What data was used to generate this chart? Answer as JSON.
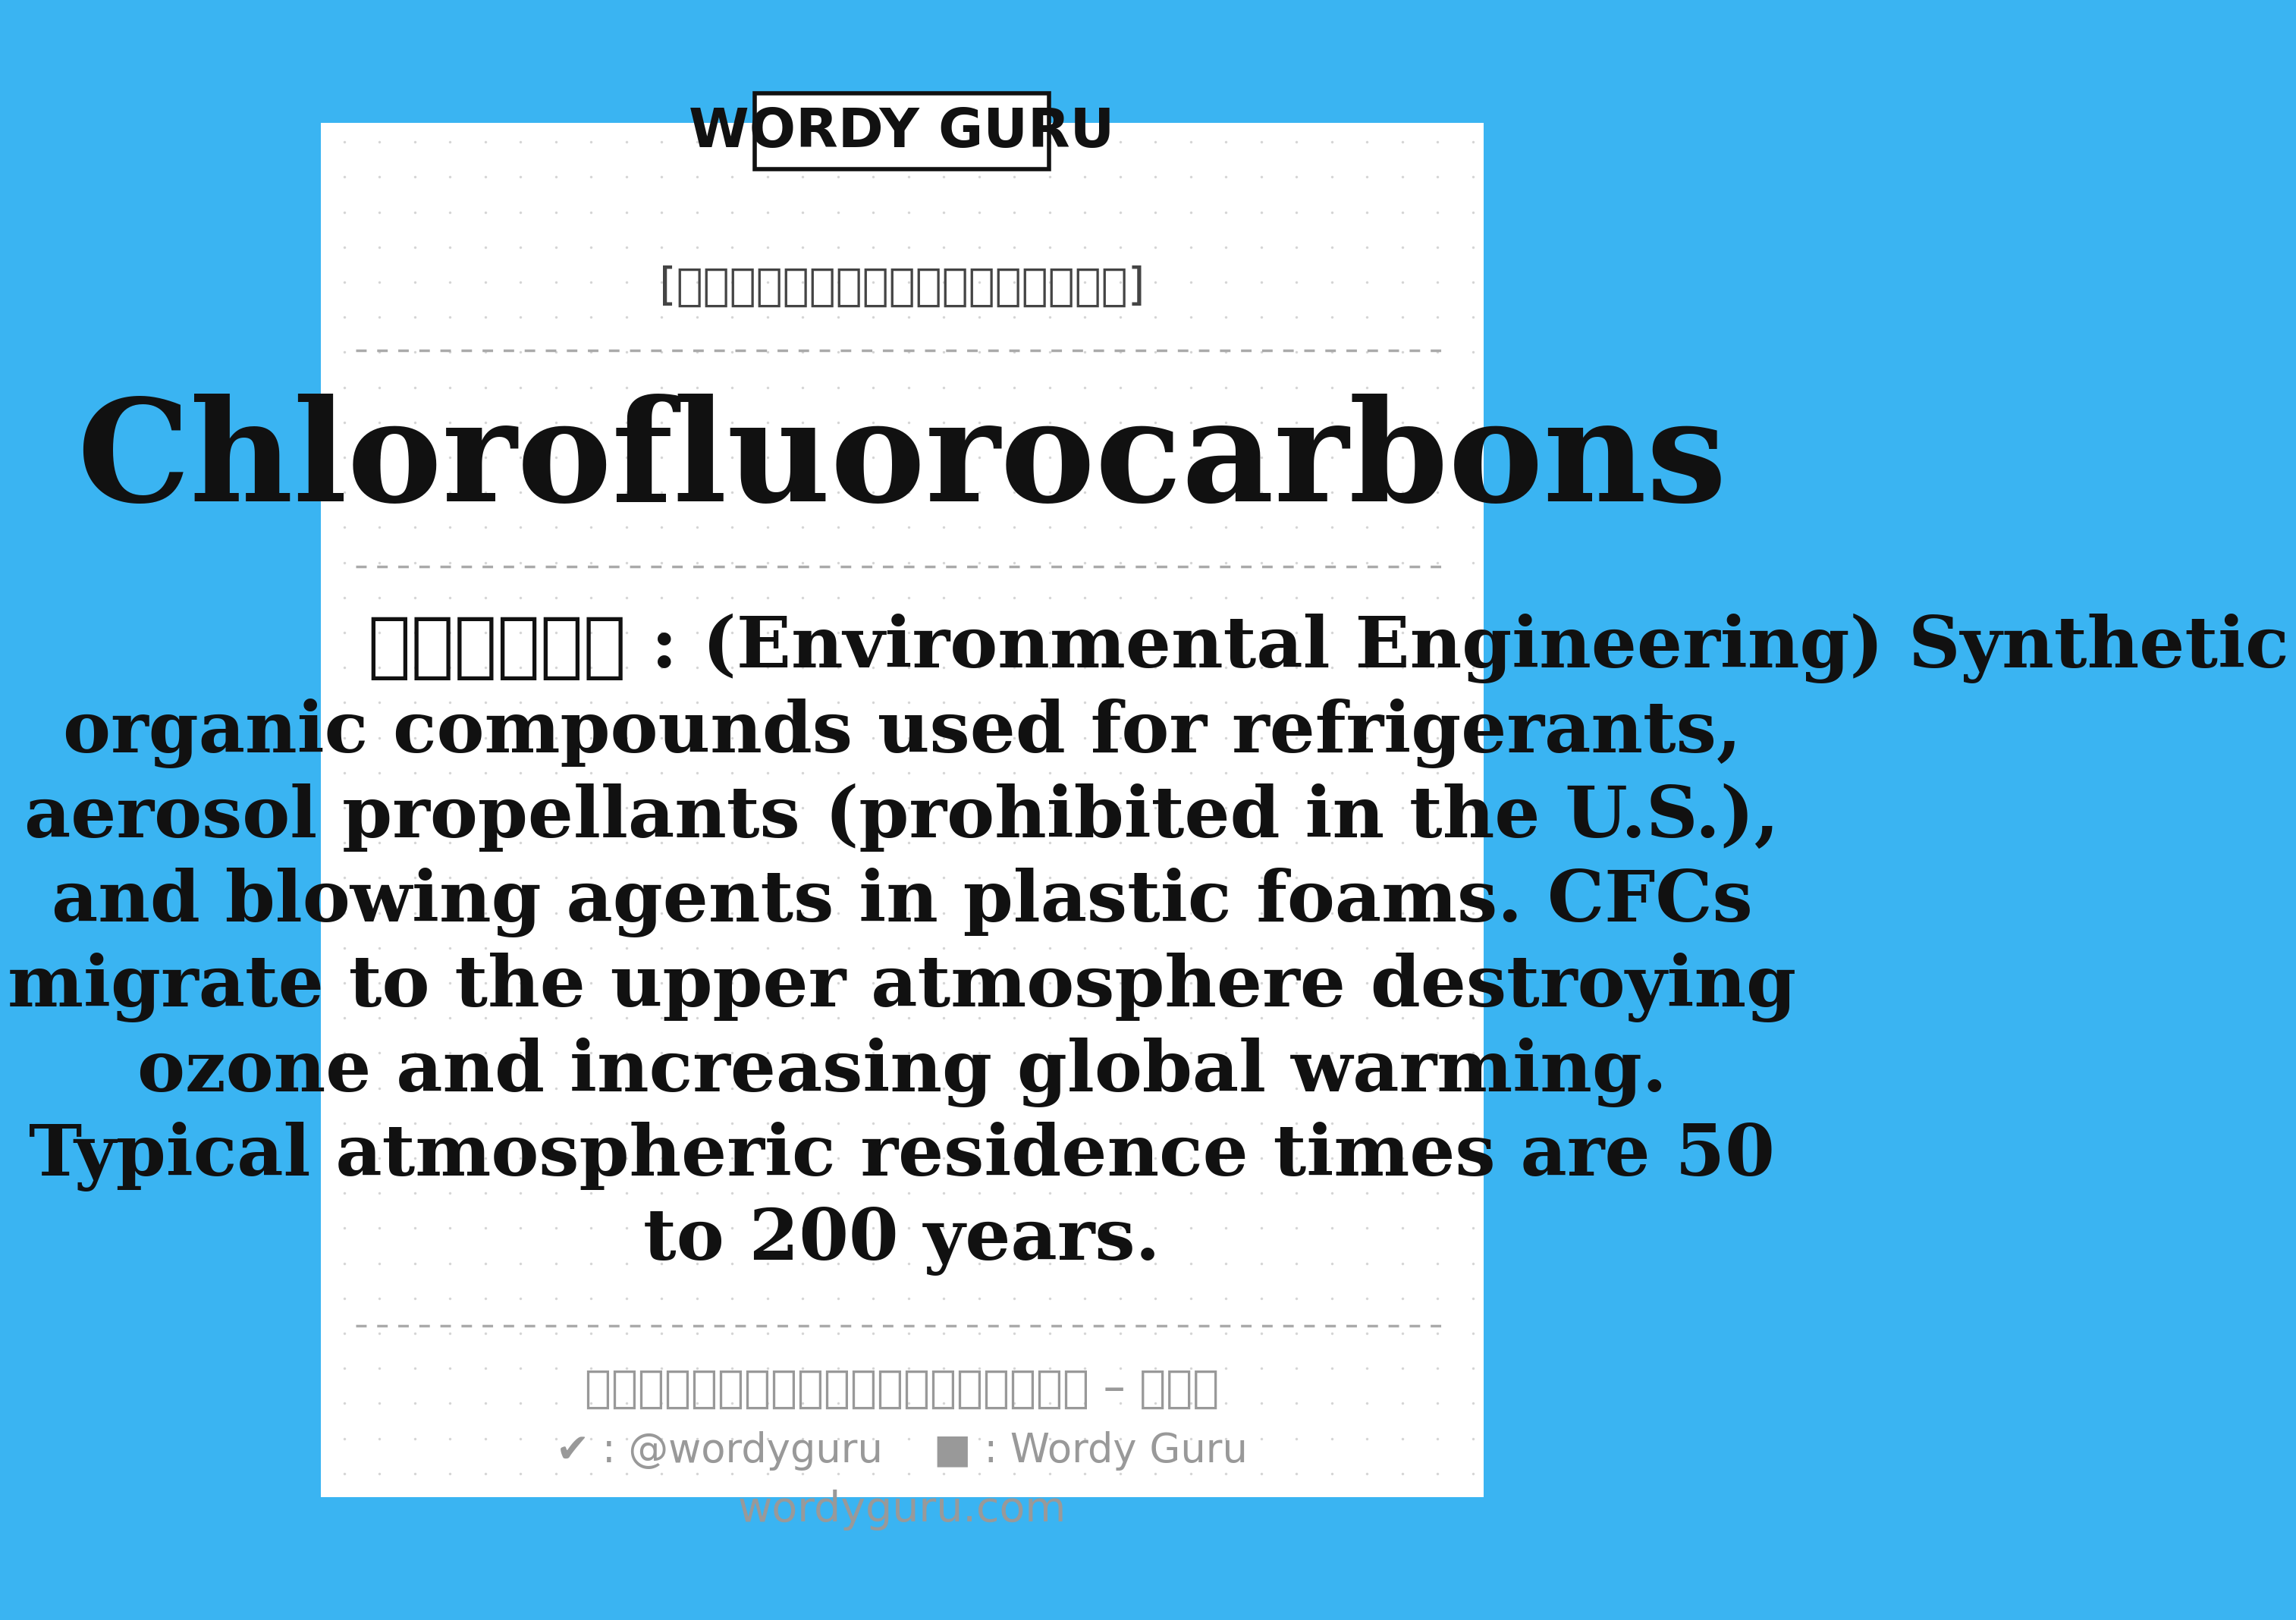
{
  "bg_color": "#3ab4f2",
  "card_color": "#ffffff",
  "logo_text": "WORDY GURU",
  "logo_box_color": "#ffffff",
  "logo_box_border": "#111111",
  "header_label": "[คำศัพท์ภาษาอังกฤษ]",
  "main_word": "Chlorofluorocarbons",
  "prefix_label": "แปลว่า :",
  "definition": "(Environmental Engineering) Synthetic organic compounds used for refrigerants, aerosol propellants (prohibited in the U.S.), and blowing agents in plastic foams. CFCs migrate to the upper atmosphere destroying ozone and increasing global warming. Typical atmospheric residence times are 50 to 200 years.",
  "footer_line1": "ศัพท์ช่างภาษาอังกฤษ – ไทย",
  "footer_twitter": "@wordyguru",
  "footer_fb": "Wordy Guru",
  "footer_website": "wordyguru.com",
  "text_dark": "#111111",
  "text_gray": "#999999",
  "header_color": "#444444",
  "dot_color": "#cccccc"
}
